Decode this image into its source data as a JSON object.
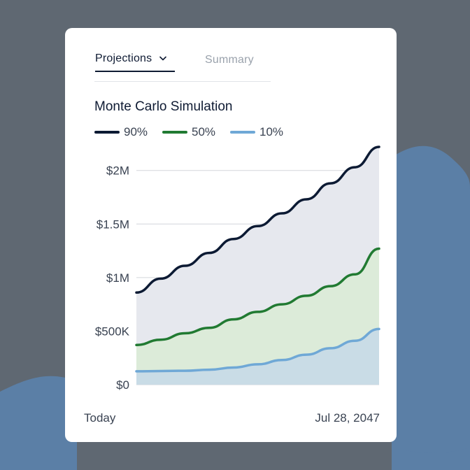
{
  "tabs": [
    {
      "label": "Projections",
      "active": true,
      "icon": "chevron-down-icon"
    },
    {
      "label": "Summary",
      "active": false
    }
  ],
  "chart_title": "Monte Carlo Simulation",
  "colors": {
    "p90": "#0c1a33",
    "p50": "#217a32",
    "p10": "#6fa8d6",
    "band_upper": "#e6e8ee",
    "band_mid": "#dcebd9",
    "band_low": "#c9dce6",
    "background": "#5f6872",
    "blob": "#5b7fa6"
  },
  "chart_data": {
    "type": "area",
    "title": "Monte Carlo Simulation",
    "x_labels": [
      "Today",
      "Jul 28, 2047"
    ],
    "x": [
      0,
      0.1,
      0.2,
      0.3,
      0.4,
      0.5,
      0.6,
      0.7,
      0.8,
      0.9,
      1.0
    ],
    "series": [
      {
        "name": "90%",
        "values": [
          860000,
          990000,
          1110000,
          1230000,
          1360000,
          1480000,
          1600000,
          1730000,
          1880000,
          2030000,
          2220000
        ]
      },
      {
        "name": "50%",
        "values": [
          370000,
          420000,
          480000,
          530000,
          610000,
          680000,
          750000,
          830000,
          920000,
          1030000,
          1270000
        ]
      },
      {
        "name": "10%",
        "values": [
          125000,
          127000,
          130000,
          140000,
          160000,
          190000,
          230000,
          280000,
          340000,
          410000,
          520000
        ]
      }
    ],
    "y_ticks": [
      {
        "value": 0,
        "label": "$0"
      },
      {
        "value": 500000,
        "label": "$500K"
      },
      {
        "value": 1000000,
        "label": "$1M"
      },
      {
        "value": 1500000,
        "label": "$1.5M"
      },
      {
        "value": 2000000,
        "label": "$2M"
      }
    ],
    "ylim": [
      0,
      2220000
    ],
    "grid": true,
    "legend_position": "top-left"
  }
}
